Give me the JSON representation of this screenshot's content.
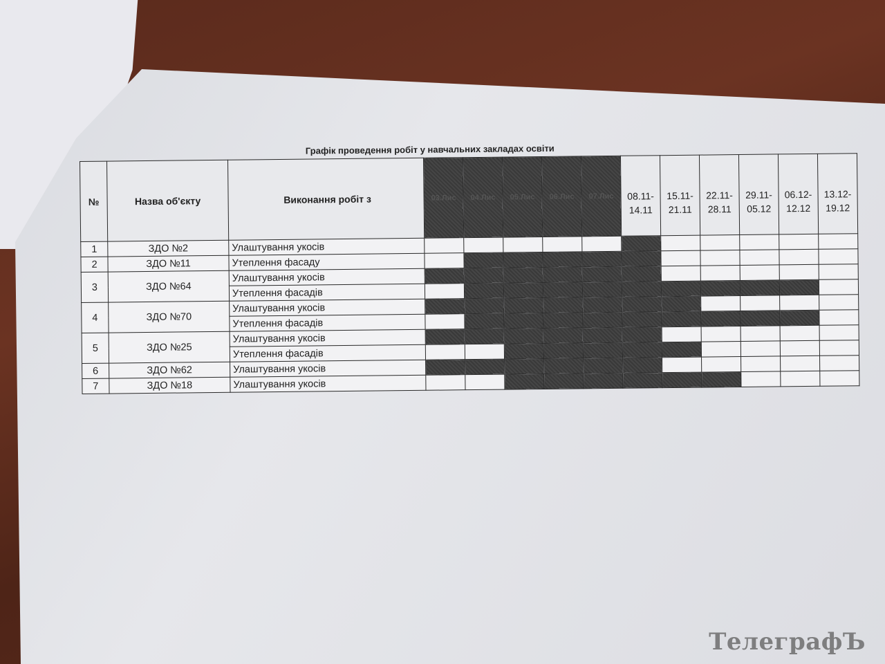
{
  "title": "Графік проведення робіт у навчальних закладах освіти",
  "headers": {
    "no": "№",
    "name": "Назва об'єкту",
    "work": "Виконання робіт з"
  },
  "periods": [
    "03.Лис",
    "04.Лис",
    "05.Лис",
    "06.Лис",
    "07.Лис",
    "08.11-14.11",
    "15.11-21.11",
    "22.11-28.11",
    "29.11-05.12",
    "06.12-12.12",
    "13.12-19.12"
  ],
  "period_header_shaded": [
    1,
    1,
    1,
    1,
    1,
    0,
    0,
    0,
    0,
    0,
    0
  ],
  "colors": {
    "shaded": "#3c3c3c",
    "paper": "#e6e7eb",
    "desk": "#5a2a1c"
  },
  "rows": [
    {
      "no": "1",
      "name": "ЗДО №2",
      "works": [
        {
          "label": "Улаштування укосів",
          "schedule": [
            0,
            0,
            0,
            0,
            0,
            1,
            0,
            0,
            0,
            0,
            0
          ]
        }
      ]
    },
    {
      "no": "2",
      "name": "ЗДО №11",
      "works": [
        {
          "label": "Утеплення фасаду",
          "schedule": [
            0,
            1,
            1,
            1,
            1,
            1,
            0,
            0,
            0,
            0,
            0
          ]
        }
      ]
    },
    {
      "no": "3",
      "name": "ЗДО №64",
      "works": [
        {
          "label": "Улаштування укосів",
          "schedule": [
            1,
            1,
            1,
            1,
            1,
            1,
            0,
            0,
            0,
            0,
            0
          ]
        },
        {
          "label": "Утеплення фасадів",
          "schedule": [
            0,
            1,
            1,
            1,
            1,
            1,
            1,
            1,
            1,
            1,
            0
          ]
        }
      ]
    },
    {
      "no": "4",
      "name": "ЗДО №70",
      "works": [
        {
          "label": "Улаштування укосів",
          "schedule": [
            1,
            1,
            1,
            1,
            1,
            1,
            1,
            0,
            0,
            0,
            0
          ]
        },
        {
          "label": "Утеплення фасадів",
          "schedule": [
            0,
            1,
            1,
            1,
            1,
            1,
            1,
            1,
            1,
            1,
            0
          ]
        }
      ]
    },
    {
      "no": "5",
      "name": "ЗДО №25",
      "works": [
        {
          "label": "Улаштування укосів",
          "schedule": [
            1,
            1,
            1,
            1,
            1,
            1,
            0,
            0,
            0,
            0,
            0
          ]
        },
        {
          "label": "Утеплення фасадів",
          "schedule": [
            0,
            0,
            1,
            1,
            1,
            1,
            1,
            0,
            0,
            0,
            0
          ]
        }
      ]
    },
    {
      "no": "6",
      "name": "ЗДО №62",
      "works": [
        {
          "label": "Улаштування укосів",
          "schedule": [
            1,
            1,
            1,
            1,
            1,
            1,
            0,
            0,
            0,
            0,
            0
          ]
        }
      ]
    },
    {
      "no": "7",
      "name": "ЗДО №18",
      "works": [
        {
          "label": "Улаштування укосів",
          "schedule": [
            0,
            0,
            1,
            1,
            1,
            1,
            1,
            1,
            0,
            0,
            0
          ]
        }
      ]
    }
  ],
  "watermark": "ТелеграфЪ"
}
